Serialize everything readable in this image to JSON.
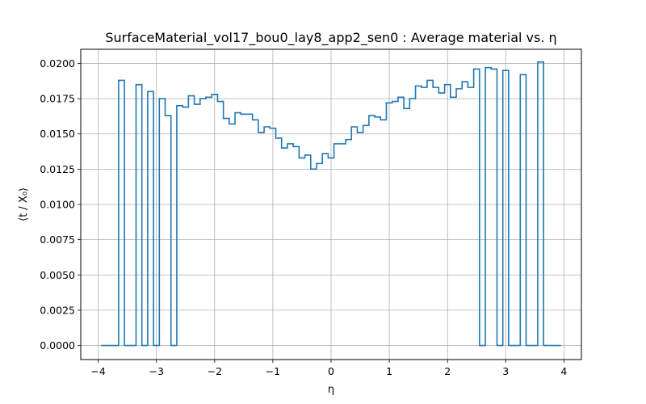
{
  "chart_data": {
    "type": "line",
    "drawstyle": "steps-post",
    "title": "SurfaceMaterial_vol17_bou0_lay8_app2_sen0 : Average material vs. η",
    "xlabel": "η",
    "ylabel": "⟨t / X₀⟩",
    "xlim": [
      -4.3,
      4.3
    ],
    "ylim": [
      -0.001,
      0.021
    ],
    "xticks": [
      -4,
      -3,
      -2,
      -1,
      0,
      1,
      2,
      3,
      4
    ],
    "xtick_labels": [
      "−4",
      "−3",
      "−2",
      "−1",
      "0",
      "1",
      "2",
      "3",
      "4"
    ],
    "yticks": [
      0.0,
      0.0025,
      0.005,
      0.0075,
      0.01,
      0.0125,
      0.015,
      0.0175,
      0.02
    ],
    "ytick_labels": [
      "0.0000",
      "0.0025",
      "0.0050",
      "0.0075",
      "0.0100",
      "0.0125",
      "0.0150",
      "0.0175",
      "0.0200"
    ],
    "grid": true,
    "color": "#1f77b4",
    "bin_edges": [
      -3.95,
      -3.85,
      -3.75,
      -3.65,
      -3.55,
      -3.45,
      -3.35,
      -3.25,
      -3.15,
      -3.05,
      -2.95,
      -2.85,
      -2.75,
      -2.65,
      -2.55,
      -2.45,
      -2.35,
      -2.25,
      -2.15,
      -2.05,
      -1.95,
      -1.85,
      -1.75,
      -1.65,
      -1.55,
      -1.45,
      -1.35,
      -1.25,
      -1.15,
      -1.05,
      -0.95,
      -0.85,
      -0.75,
      -0.65,
      -0.55,
      -0.45,
      -0.35,
      -0.25,
      -0.15,
      -0.05,
      0.05,
      0.15,
      0.25,
      0.35,
      0.45,
      0.55,
      0.65,
      0.75,
      0.85,
      0.95,
      1.05,
      1.15,
      1.25,
      1.35,
      1.45,
      1.55,
      1.65,
      1.75,
      1.85,
      1.95,
      2.05,
      2.15,
      2.25,
      2.35,
      2.45,
      2.55,
      2.65,
      2.75,
      2.85,
      2.95,
      3.05,
      3.15,
      3.25,
      3.35,
      3.45,
      3.55,
      3.65,
      3.75,
      3.85,
      3.95
    ],
    "values": [
      0.0,
      0.0,
      0.0,
      0.0188,
      0.0,
      0.0,
      0.0185,
      0.0,
      0.018,
      0.0,
      0.0175,
      0.0163,
      0.0,
      0.017,
      0.0169,
      0.0177,
      0.0171,
      0.0175,
      0.0176,
      0.0178,
      0.0173,
      0.0161,
      0.0157,
      0.0165,
      0.0164,
      0.0164,
      0.016,
      0.0151,
      0.0155,
      0.0154,
      0.0147,
      0.014,
      0.0143,
      0.0141,
      0.0133,
      0.0135,
      0.0125,
      0.0129,
      0.0136,
      0.0133,
      0.0143,
      0.0143,
      0.0146,
      0.0155,
      0.0151,
      0.0156,
      0.0163,
      0.0162,
      0.016,
      0.0172,
      0.0173,
      0.0176,
      0.0168,
      0.0175,
      0.0184,
      0.0183,
      0.0188,
      0.0183,
      0.0179,
      0.0185,
      0.0176,
      0.0182,
      0.0187,
      0.0183,
      0.0196,
      0.0,
      0.0197,
      0.0196,
      0.0,
      0.0195,
      0.0,
      0.0,
      0.0192,
      0.0,
      0.0,
      0.0201,
      0.0,
      0.0,
      0.0
    ]
  }
}
